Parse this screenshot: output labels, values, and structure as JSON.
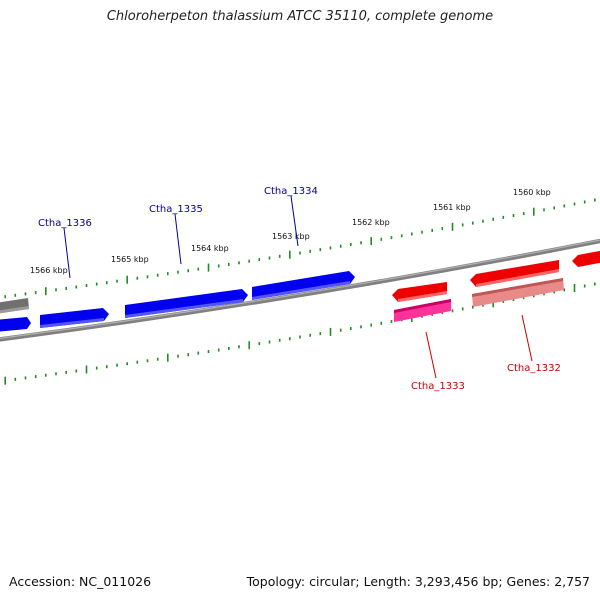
{
  "title": "Chloroherpeton thalassium ATCC 35110, complete genome",
  "footer": {
    "accession": "Accession: NC_011026",
    "summary": "Topology: circular; Length: 3,293,456 bp; Genes: 2,757"
  },
  "kbp_labels": [
    "1566 kbp",
    "1565 kbp",
    "1564 kbp",
    "1563 kbp",
    "1562 kbp",
    "1561 kbp",
    "1560 kbp"
  ],
  "genes": [
    {
      "id": "Ctha_1336",
      "label": "Ctha_1336",
      "strand": "forward",
      "color": "#0000ee"
    },
    {
      "id": "Ctha_1335",
      "label": "Ctha_1335",
      "strand": "forward",
      "color": "#0000ee"
    },
    {
      "id": "Ctha_1334",
      "label": "Ctha_1334",
      "strand": "forward",
      "color": "#0000ee"
    },
    {
      "id": "Ctha_1333",
      "label": "Ctha_1333",
      "strand": "reverse",
      "color": "#ee0000"
    },
    {
      "id": "Ctha_1332",
      "label": "Ctha_1332",
      "strand": "reverse",
      "color": "#ee0000"
    }
  ],
  "colors": {
    "forward_gene": "#0000ee",
    "reverse_gene": "#ee0000",
    "reverse_gene_pink": "#ff3399",
    "reverse_gene_light": "#e88a8a",
    "backbone": "#808080",
    "ticks": "#228b22",
    "label_forward": "#000099",
    "label_reverse": "#cc0000"
  }
}
